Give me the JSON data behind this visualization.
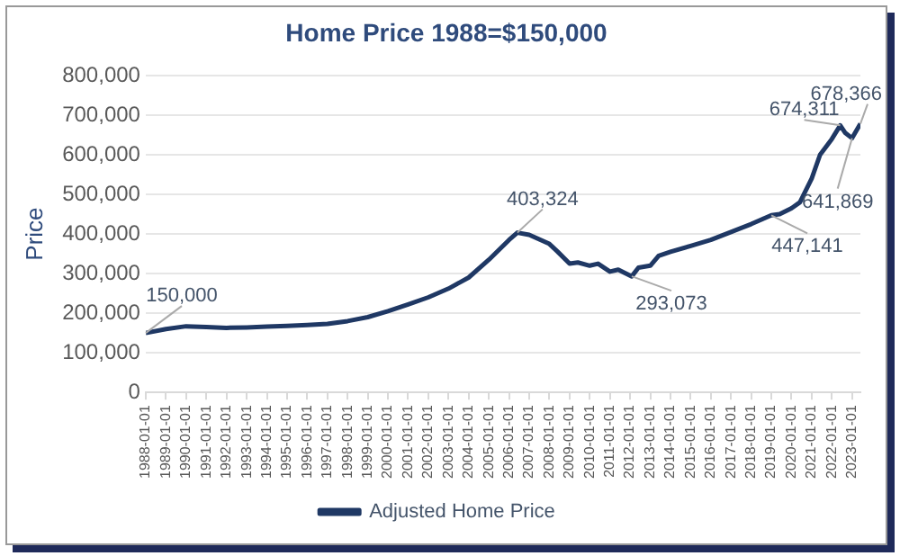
{
  "chart_data": {
    "type": "line",
    "title": "Home Price 1988=$150,000",
    "ylabel": "Price",
    "x": [
      "1988-01",
      "1989-01",
      "1990-01",
      "1991-01",
      "1992-01",
      "1993-01",
      "1994-01",
      "1995-01",
      "1996-01",
      "1997-01",
      "1998-01",
      "1999-01",
      "2000-01",
      "2001-01",
      "2002-01",
      "2003-01",
      "2004-01",
      "2005-01",
      "2006-01",
      "2006-06",
      "2007-01",
      "2008-01",
      "2008-06",
      "2009-01",
      "2009-06",
      "2010-01",
      "2010-06",
      "2011-01",
      "2011-06",
      "2012-02",
      "2012-06",
      "2013-01",
      "2013-06",
      "2014-01",
      "2015-01",
      "2016-01",
      "2017-01",
      "2018-01",
      "2019-01",
      "2019-06",
      "2020-01",
      "2020-06",
      "2021-01",
      "2021-06",
      "2022-01",
      "2022-06",
      "2022-09",
      "2023-01",
      "2023-06"
    ],
    "series": [
      {
        "name": "Adjusted Home Price",
        "color": "#1f3864",
        "values": [
          150000,
          160000,
          167000,
          165000,
          163000,
          164000,
          166000,
          168000,
          170000,
          173000,
          180000,
          190000,
          205000,
          222000,
          240000,
          262000,
          290000,
          335000,
          385000,
          403324,
          398000,
          375000,
          355000,
          325000,
          328000,
          320000,
          325000,
          305000,
          310000,
          293073,
          315000,
          320000,
          345000,
          355000,
          370000,
          385000,
          405000,
          425000,
          447141,
          450000,
          465000,
          480000,
          540000,
          600000,
          640000,
          674311,
          655000,
          641869,
          678366
        ]
      }
    ],
    "xlim": [
      "1988-01",
      "2023-06"
    ],
    "xticks": [
      "1988-01-01",
      "1989-01-01",
      "1990-01-01",
      "1991-01-01",
      "1992-01-01",
      "1993-01-01",
      "1994-01-01",
      "1995-01-01",
      "1996-01-01",
      "1997-01-01",
      "1998-01-01",
      "1999-01-01",
      "2000-01-01",
      "2001-01-01",
      "2002-01-01",
      "2003-01-01",
      "2004-01-01",
      "2005-01-01",
      "2006-01-01",
      "2007-01-01",
      "2008-01-01",
      "2009-01-01",
      "2010-01-01",
      "2011-01-01",
      "2012-01-01",
      "2013-01-01",
      "2014-01-01",
      "2015-01-01",
      "2016-01-01",
      "2017-01-01",
      "2018-01-01",
      "2019-01-01",
      "2020-01-01",
      "2021-01-01",
      "2022-01-01",
      "2023-01-01"
    ],
    "ylim": [
      0,
      800000
    ],
    "yticks": [
      {
        "value": 0,
        "label": "0"
      },
      {
        "value": 100000,
        "label": "100,000"
      },
      {
        "value": 200000,
        "label": "200,000"
      },
      {
        "value": 300000,
        "label": "300,000"
      },
      {
        "value": 400000,
        "label": "400,000"
      },
      {
        "value": 500000,
        "label": "500,000"
      },
      {
        "value": 600000,
        "label": "600,000"
      },
      {
        "value": 700000,
        "label": "700,000"
      },
      {
        "value": 800000,
        "label": "800,000"
      }
    ],
    "grid": "y",
    "legend": "bottom",
    "marker": "none",
    "line_style": "solid",
    "annotations": [
      {
        "text": "150,000",
        "x": "1988-01",
        "y": 150000
      },
      {
        "text": "403,324",
        "x": "2006-06",
        "y": 403324
      },
      {
        "text": "293,073",
        "x": "2012-02",
        "y": 293073
      },
      {
        "text": "447,141",
        "x": "2019-01",
        "y": 447141
      },
      {
        "text": "674,311",
        "x": "2022-06",
        "y": 674311
      },
      {
        "text": "641,869",
        "x": "2023-01",
        "y": 641869
      },
      {
        "text": "678,366",
        "x": "2023-06",
        "y": 678366
      }
    ]
  }
}
